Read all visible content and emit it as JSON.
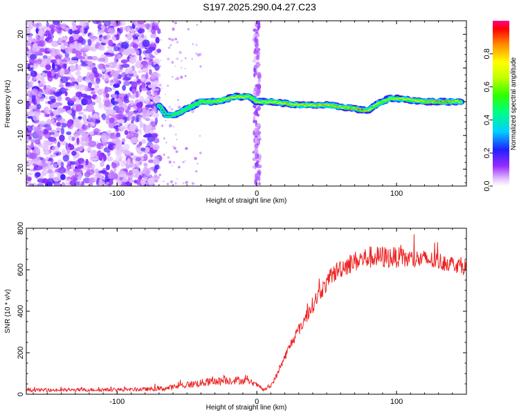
{
  "title": "S197.2025.290.04.27.C23",
  "chart_data": [
    {
      "type": "heatmap",
      "description_source": "top panel",
      "xlabel": "Height of straight line (km)",
      "ylabel": "Frequency (Hz)",
      "xlim": [
        -165,
        150
      ],
      "ylim": [
        -25,
        24
      ],
      "xticks": [
        -100,
        0,
        100
      ],
      "yticks": [
        -20,
        -10,
        0,
        10,
        20
      ],
      "xtick_labels": [
        "-100",
        "0",
        "100"
      ],
      "ytick_labels": [
        "-20",
        "-10",
        "0",
        "10",
        "20"
      ],
      "noise_region_x": [
        -165,
        -70
      ],
      "vertical_noise_band_x": 0,
      "ridge": {
        "x": [
          -70,
          -65,
          -60,
          -55,
          -50,
          -45,
          -40,
          -35,
          -30,
          -25,
          -20,
          -15,
          -10,
          -5,
          0,
          10,
          20,
          30,
          40,
          50,
          60,
          70,
          75,
          80,
          85,
          90,
          95,
          100,
          110,
          120,
          130,
          140,
          147
        ],
        "freq": [
          -1,
          -4,
          -4,
          -3,
          -2,
          -1,
          0,
          0,
          0,
          0.5,
          1,
          1.5,
          1.5,
          1.5,
          0,
          0,
          -0.5,
          -1,
          -1,
          -1,
          -1.5,
          -2,
          -2.5,
          -2.5,
          -1,
          0,
          1,
          1,
          0.5,
          0,
          0,
          0,
          0
        ],
        "amplitude": [
          0.3,
          0.3,
          0.35,
          0.4,
          0.45,
          0.5,
          0.55,
          0.6,
          0.65,
          0.7,
          0.75,
          0.75,
          0.7,
          0.6,
          0.65,
          0.7,
          0.8,
          0.75,
          0.8,
          0.8,
          0.8,
          0.85,
          0.9,
          0.8,
          0.7,
          0.6,
          0.65,
          0.7,
          0.75,
          0.8,
          0.85,
          0.85,
          0.6
        ]
      },
      "colorbar": {
        "label": "Normalized spectral amplitude",
        "range": [
          0,
          1
        ],
        "ticks": [
          0.0,
          0.2,
          0.4,
          0.6,
          0.8
        ],
        "tick_labels": [
          "0.0",
          "0.2",
          "0.4",
          "0.6",
          "0.8"
        ]
      }
    },
    {
      "type": "line",
      "description_source": "bottom panel",
      "xlabel": "Height of straight line (km)",
      "ylabel": "SNR (10 * v/v)",
      "xlim": [
        -165,
        150
      ],
      "ylim": [
        0,
        800
      ],
      "xticks": [
        -100,
        0,
        100
      ],
      "yticks": [
        0,
        200,
        400,
        600,
        800
      ],
      "xtick_labels": [
        "-100",
        "0",
        "100"
      ],
      "ytick_labels": [
        "0",
        "200",
        "400",
        "600",
        "800"
      ],
      "series": [
        {
          "name": "SNR",
          "color": "#ee2222",
          "x": [
            -165,
            -150,
            -130,
            -110,
            -90,
            -75,
            -65,
            -55,
            -45,
            -35,
            -25,
            -15,
            -10,
            -5,
            0,
            5,
            10,
            15,
            20,
            25,
            30,
            35,
            40,
            45,
            50,
            55,
            60,
            70,
            80,
            90,
            100,
            110,
            120,
            130,
            140,
            150
          ],
          "y": [
            20,
            20,
            20,
            22,
            22,
            25,
            28,
            40,
            50,
            58,
            65,
            68,
            65,
            60,
            45,
            20,
            40,
            100,
            180,
            250,
            310,
            370,
            430,
            490,
            530,
            580,
            610,
            640,
            660,
            660,
            660,
            650,
            650,
            640,
            630,
            610
          ],
          "noise_amplitude": [
            8,
            8,
            8,
            8,
            8,
            10,
            12,
            15,
            18,
            20,
            20,
            20,
            18,
            15,
            10,
            8,
            10,
            15,
            20,
            25,
            30,
            35,
            40,
            40,
            40,
            45,
            50,
            50,
            55,
            55,
            50,
            50,
            45,
            45,
            40,
            40
          ]
        }
      ]
    }
  ]
}
